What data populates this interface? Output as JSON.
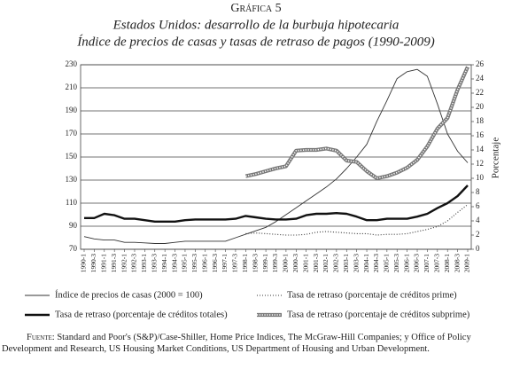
{
  "chart_data": {
    "type": "line",
    "heading": "Gráfica 5",
    "title": "Estados Unidos: desarrollo de la burbuja hipotecaria",
    "subtitle": "Índice de precios de casas y tasas de retraso de pagos (1990-2009)",
    "y2label": "Porcentaje",
    "categories": [
      "1990-1",
      "1990-3",
      "1991-1",
      "1991-3",
      "1992-1",
      "1992-3",
      "1993-1",
      "1993-3",
      "1994-1",
      "1994-3",
      "1995-1",
      "1995-3",
      "1996-1",
      "1996-3",
      "1997-1",
      "1997-3",
      "1998-1",
      "1998-3",
      "1999-1",
      "1999-3",
      "2000-1",
      "2000-3",
      "2001-1",
      "2001-3",
      "2002-1",
      "2002-3",
      "2003-1",
      "2003-3",
      "2004-1",
      "2004-3",
      "2005-1",
      "2005-3",
      "2006-1",
      "2006-3",
      "2007-1",
      "2007-3",
      "2008-1",
      "2008-3",
      "2009-1"
    ],
    "ylim": [
      70,
      230
    ],
    "yticks": [
      70,
      90,
      110,
      130,
      150,
      170,
      190,
      210,
      230
    ],
    "y2lim": [
      0,
      26
    ],
    "y2ticks": [
      0,
      2,
      4,
      6,
      8,
      10,
      12,
      14,
      16,
      18,
      20,
      22,
      24,
      26
    ],
    "grid": true,
    "series": [
      {
        "name": "Índice de precios de casas (2000 = 100)",
        "style": "thin",
        "color": "#333333",
        "values": [
          81,
          79,
          78,
          78,
          76,
          76,
          75.5,
          75,
          75,
          76,
          77,
          77,
          77,
          77,
          77,
          80,
          83,
          86,
          89,
          94,
          100,
          106,
          112,
          118,
          124,
          131,
          140,
          150,
          161,
          181,
          199,
          218,
          224,
          226,
          220,
          196,
          170,
          155,
          145
        ]
      },
      {
        "name": "Tasa de retraso (porcentaje de créditos prime)",
        "style": "dotted",
        "color": "#333333",
        "axis": "y2",
        "values": [
          null,
          null,
          null,
          null,
          null,
          null,
          null,
          null,
          null,
          null,
          null,
          null,
          null,
          null,
          null,
          null,
          2.2,
          2.3,
          2.2,
          2.1,
          2.0,
          2.0,
          2.1,
          2.4,
          2.5,
          2.4,
          2.3,
          2.2,
          2.2,
          2.0,
          2.1,
          2.1,
          2.2,
          2.5,
          2.8,
          3.2,
          4.0,
          5.2,
          6.3
        ]
      },
      {
        "name": "Tasa de retraso (porcentaje de créditos totales)",
        "style": "thick",
        "color": "#111111",
        "axis": "y2",
        "values": [
          4.4,
          4.4,
          5.0,
          4.8,
          4.3,
          4.3,
          4.1,
          3.9,
          3.9,
          3.9,
          4.1,
          4.2,
          4.2,
          4.2,
          4.2,
          4.3,
          4.7,
          4.5,
          4.3,
          4.2,
          4.2,
          4.3,
          4.8,
          5.0,
          5.0,
          5.1,
          5.0,
          4.6,
          4.1,
          4.1,
          4.3,
          4.3,
          4.3,
          4.6,
          5.0,
          5.8,
          6.5,
          7.5,
          9.0
        ]
      },
      {
        "name": "Tasa de retraso (porcentaje de créditos subprime)",
        "style": "beaded",
        "color": "#777777",
        "axis": "y2",
        "values": [
          null,
          null,
          null,
          null,
          null,
          null,
          null,
          null,
          null,
          null,
          null,
          null,
          null,
          null,
          null,
          null,
          10.3,
          10.6,
          11.0,
          11.4,
          11.7,
          13.9,
          14.0,
          14.0,
          14.2,
          13.9,
          12.5,
          12.3,
          11.0,
          10.0,
          10.3,
          10.8,
          11.5,
          12.6,
          14.5,
          17.0,
          18.5,
          22.5,
          25.7
        ]
      }
    ],
    "source_label": "Fuente:",
    "source": "Standard and Poor's (S&P)/Case-Shiller, Home Price Indices, The McGraw-Hill Companies; y Office of Policy Development and Research, US Housing Market Conditions, US Department of Housing and Urban Development."
  }
}
